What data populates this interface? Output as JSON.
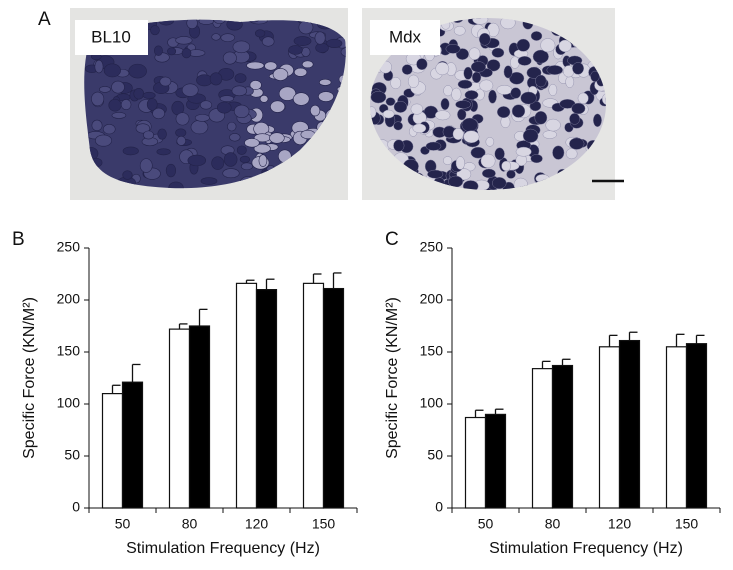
{
  "figure": {
    "panel_a": {
      "label": "A",
      "images": [
        "BL10",
        "Mdx"
      ]
    }
  },
  "chart_data": [
    {
      "type": "bar",
      "panel_label": "B",
      "xlabel": "Stimulation Frequency (Hz)",
      "ylabel": "Specific Force (KN/M²)",
      "categories": [
        "50",
        "80",
        "120",
        "150"
      ],
      "series": [
        {
          "color": "#ffffff",
          "values": [
            110,
            172,
            216,
            216
          ],
          "errors": [
            8,
            5,
            3,
            9
          ]
        },
        {
          "color": "#000000",
          "values": [
            121,
            175,
            210,
            211
          ],
          "errors": [
            17,
            16,
            10,
            15
          ]
        }
      ],
      "ylim": [
        0,
        250
      ],
      "yticks": [
        0,
        50,
        100,
        150,
        200,
        250
      ]
    },
    {
      "type": "bar",
      "panel_label": "C",
      "xlabel": "Stimulation Frequency (Hz)",
      "ylabel": "Specific Force (KN/M²)",
      "categories": [
        "50",
        "80",
        "120",
        "150"
      ],
      "series": [
        {
          "color": "#ffffff",
          "values": [
            87,
            134,
            155,
            155
          ],
          "errors": [
            7,
            7,
            11,
            12
          ]
        },
        {
          "color": "#000000",
          "values": [
            90,
            137,
            161,
            158
          ],
          "errors": [
            5,
            6,
            8,
            8
          ]
        }
      ],
      "ylim": [
        0,
        250
      ],
      "yticks": [
        0,
        50,
        100,
        150,
        200,
        250
      ]
    }
  ]
}
